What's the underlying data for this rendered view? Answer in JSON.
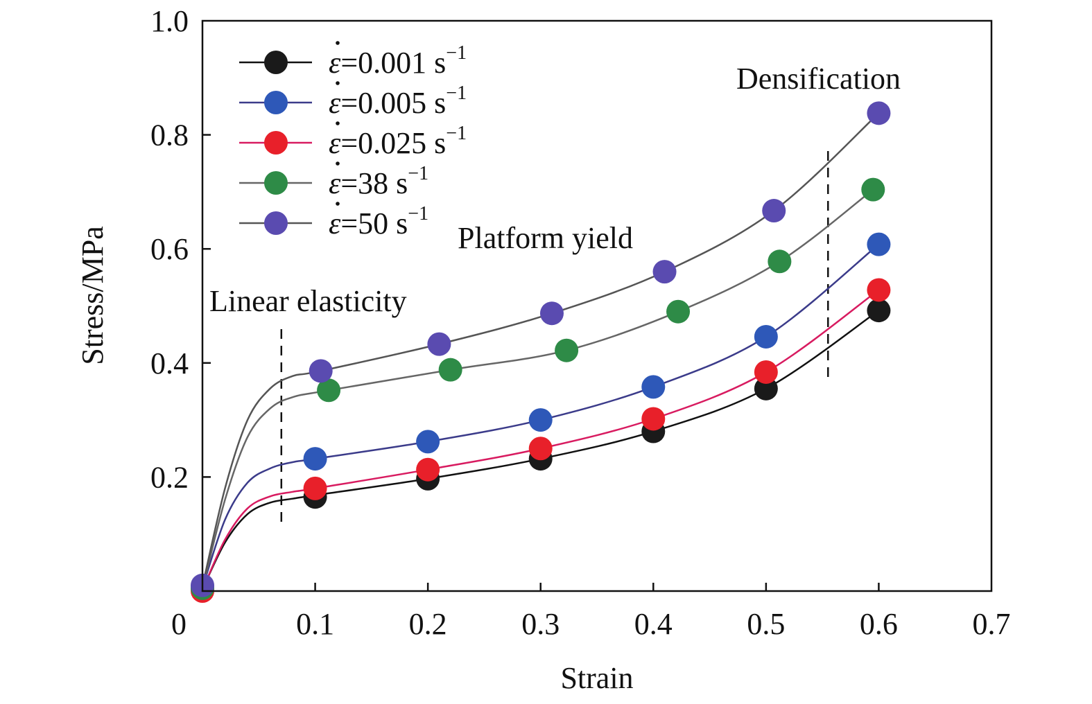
{
  "chart_data": {
    "type": "line",
    "xlabel": "Strain",
    "ylabel": "Stress/MPa",
    "xlim": [
      0,
      0.7
    ],
    "ylim": [
      0,
      1.0
    ],
    "x_ticks": [
      {
        "value": 0,
        "label": "0"
      },
      {
        "value": 0.1,
        "label": "0.1"
      },
      {
        "value": 0.2,
        "label": "0.2"
      },
      {
        "value": 0.3,
        "label": "0.3"
      },
      {
        "value": 0.4,
        "label": "0.4"
      },
      {
        "value": 0.5,
        "label": "0.5"
      },
      {
        "value": 0.6,
        "label": "0.6"
      },
      {
        "value": 0.7,
        "label": "0.7"
      }
    ],
    "y_ticks": [
      {
        "value": 0.2,
        "label": "0.2"
      },
      {
        "value": 0.4,
        "label": "0.4"
      },
      {
        "value": 0.6,
        "label": "0.6"
      },
      {
        "value": 0.8,
        "label": "0.8"
      },
      {
        "value": 1.0,
        "label": "1.0"
      }
    ],
    "grid": false,
    "legend_position": "top-left",
    "annotations": [
      {
        "text": "Linear elasticity",
        "boundary_x": 0.07
      },
      {
        "text": "Platform yield"
      },
      {
        "text": "Densification",
        "boundary_x": 0.555
      }
    ],
    "series": [
      {
        "name": "ε̇=0.001 s⁻¹",
        "legend": {
          "prefix": "ε",
          "value": "=0.001 s",
          "sup": "−1"
        },
        "color": "#1a1a1a",
        "line_color": "#111111",
        "markers": [
          [
            0,
            0.005
          ],
          [
            0.1,
            0.165
          ],
          [
            0.2,
            0.197
          ],
          [
            0.3,
            0.232
          ],
          [
            0.4,
            0.28
          ],
          [
            0.5,
            0.355
          ],
          [
            0.6,
            0.492
          ]
        ],
        "curve": [
          [
            0,
            0.003
          ],
          [
            0.02,
            0.085
          ],
          [
            0.04,
            0.135
          ],
          [
            0.06,
            0.155
          ],
          [
            0.08,
            0.162
          ],
          [
            0.1,
            0.168
          ],
          [
            0.2,
            0.197
          ],
          [
            0.3,
            0.232
          ],
          [
            0.4,
            0.28
          ],
          [
            0.5,
            0.355
          ],
          [
            0.6,
            0.492
          ]
        ]
      },
      {
        "name": "ε̇=0.005 s⁻¹",
        "legend": {
          "prefix": "ε",
          "value": "=0.005 s",
          "sup": "−1"
        },
        "color": "#2e58b8",
        "line_color": "#3b3b8a",
        "markers": [
          [
            0,
            0.008
          ],
          [
            0.1,
            0.232
          ],
          [
            0.2,
            0.262
          ],
          [
            0.3,
            0.3
          ],
          [
            0.4,
            0.358
          ],
          [
            0.5,
            0.446
          ],
          [
            0.6,
            0.608
          ]
        ],
        "curve": [
          [
            0,
            0.006
          ],
          [
            0.02,
            0.125
          ],
          [
            0.04,
            0.19
          ],
          [
            0.06,
            0.215
          ],
          [
            0.08,
            0.226
          ],
          [
            0.1,
            0.232
          ],
          [
            0.2,
            0.262
          ],
          [
            0.3,
            0.3
          ],
          [
            0.4,
            0.358
          ],
          [
            0.5,
            0.446
          ],
          [
            0.6,
            0.608
          ]
        ]
      },
      {
        "name": "ε̇=0.025 s⁻¹",
        "legend": {
          "prefix": "ε",
          "value": "=0.025 s",
          "sup": "−1"
        },
        "color": "#e8202a",
        "line_color": "#d81b60",
        "markers": [
          [
            0,
            0
          ],
          [
            0.1,
            0.18
          ],
          [
            0.2,
            0.213
          ],
          [
            0.3,
            0.25
          ],
          [
            0.4,
            0.302
          ],
          [
            0.5,
            0.384
          ],
          [
            0.6,
            0.528
          ]
        ],
        "curve": [
          [
            0,
            0.002
          ],
          [
            0.02,
            0.09
          ],
          [
            0.04,
            0.145
          ],
          [
            0.06,
            0.166
          ],
          [
            0.08,
            0.174
          ],
          [
            0.1,
            0.18
          ],
          [
            0.2,
            0.213
          ],
          [
            0.3,
            0.25
          ],
          [
            0.4,
            0.302
          ],
          [
            0.5,
            0.384
          ],
          [
            0.6,
            0.528
          ]
        ]
      },
      {
        "name": "ε̇=38 s⁻¹",
        "legend": {
          "prefix": "ε",
          "value": "=38 s",
          "sup": "−1"
        },
        "color": "#2e8b47",
        "line_color": "#666666",
        "markers": [
          [
            0,
            0.005
          ],
          [
            0.112,
            0.352
          ],
          [
            0.22,
            0.388
          ],
          [
            0.323,
            0.422
          ],
          [
            0.422,
            0.49
          ],
          [
            0.512,
            0.578
          ],
          [
            0.595,
            0.704
          ]
        ],
        "curve": [
          [
            0,
            0.004
          ],
          [
            0.02,
            0.16
          ],
          [
            0.04,
            0.27
          ],
          [
            0.06,
            0.32
          ],
          [
            0.08,
            0.34
          ],
          [
            0.112,
            0.352
          ],
          [
            0.22,
            0.388
          ],
          [
            0.323,
            0.422
          ],
          [
            0.422,
            0.49
          ],
          [
            0.512,
            0.578
          ],
          [
            0.595,
            0.704
          ]
        ]
      },
      {
        "name": "ε̇=50 s⁻¹",
        "legend": {
          "prefix": "ε",
          "value": "=50 s",
          "sup": "−1"
        },
        "color": "#5a4bb0",
        "line_color": "#555555",
        "markers": [
          [
            0,
            0.01
          ],
          [
            0.105,
            0.386
          ],
          [
            0.21,
            0.433
          ],
          [
            0.31,
            0.487
          ],
          [
            0.41,
            0.56
          ],
          [
            0.507,
            0.667
          ],
          [
            0.6,
            0.838
          ]
        ],
        "curve": [
          [
            0,
            0.008
          ],
          [
            0.02,
            0.18
          ],
          [
            0.04,
            0.3
          ],
          [
            0.06,
            0.355
          ],
          [
            0.08,
            0.377
          ],
          [
            0.105,
            0.386
          ],
          [
            0.21,
            0.433
          ],
          [
            0.31,
            0.487
          ],
          [
            0.41,
            0.56
          ],
          [
            0.507,
            0.667
          ],
          [
            0.6,
            0.838
          ]
        ]
      }
    ]
  }
}
